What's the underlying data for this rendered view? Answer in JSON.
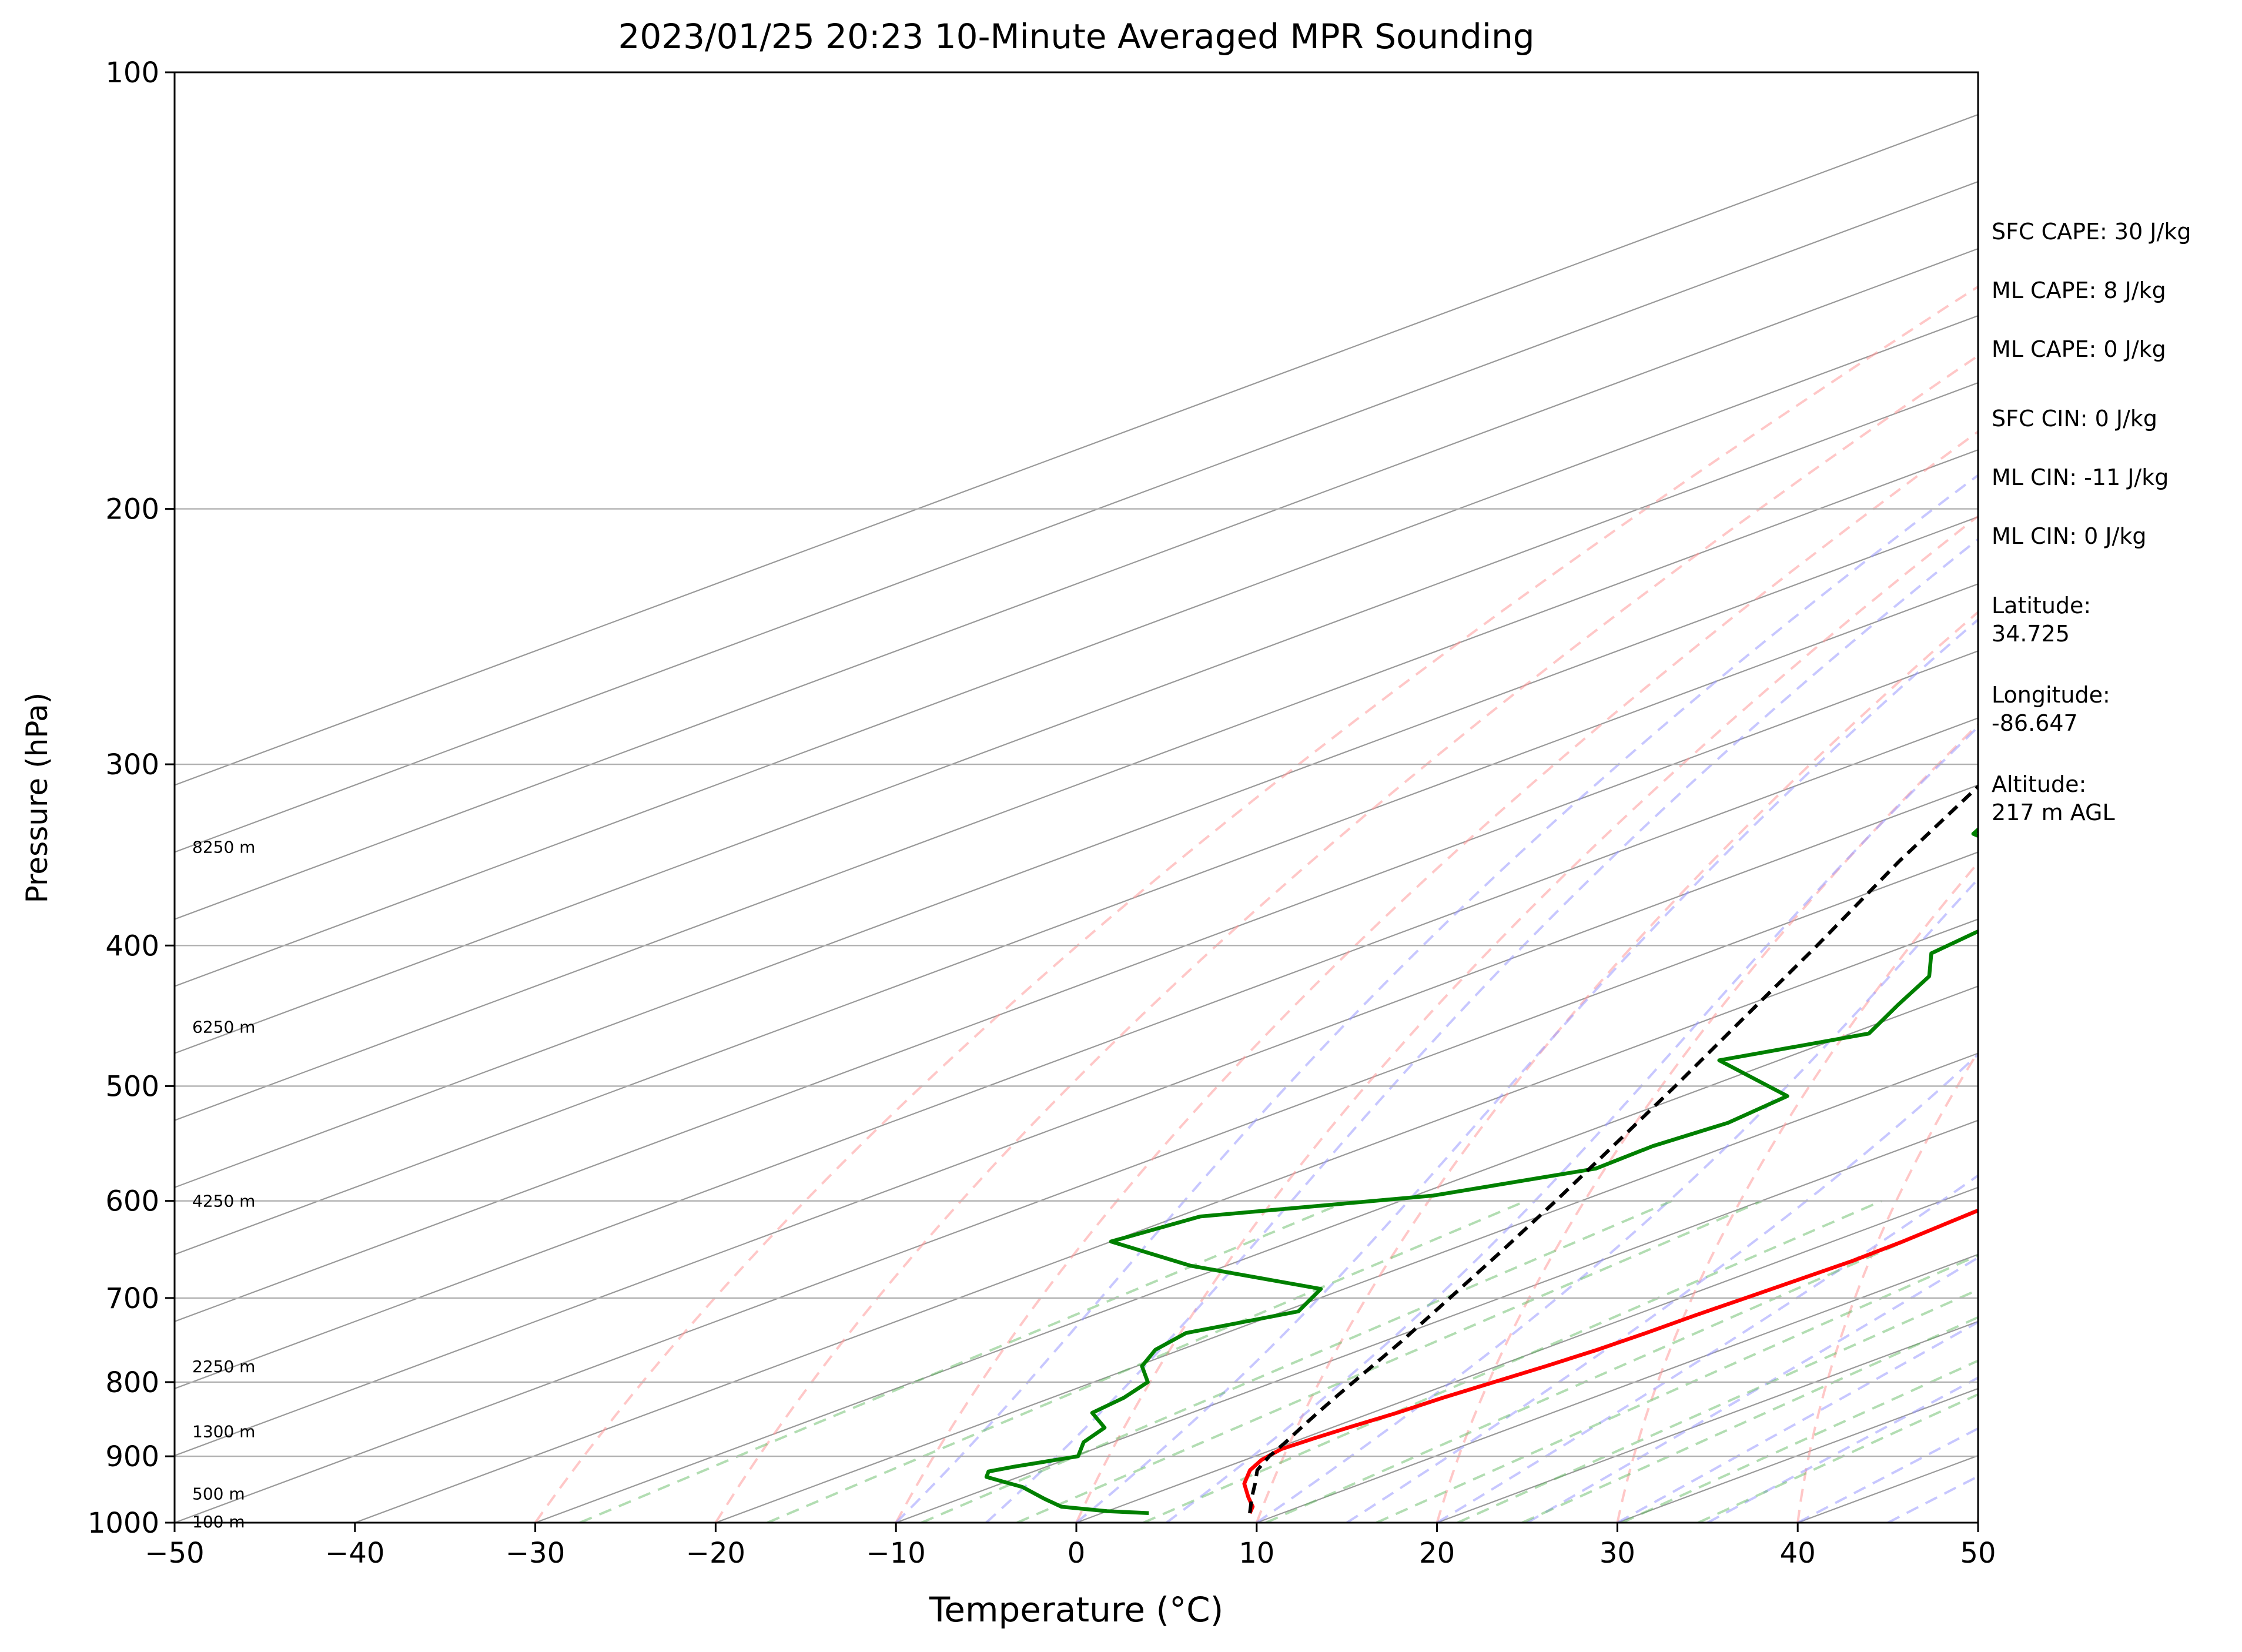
{
  "chart_data": {
    "type": "line",
    "title": "2023/01/25 20:23 10-Minute Averaged MPR Sounding",
    "xlabel": "Temperature (°C)",
    "ylabel": "Pressure (hPa)",
    "xlim": [
      -50,
      50
    ],
    "ylim": [
      1000,
      100
    ],
    "yscale": "log",
    "x_ticks": [
      -50,
      -40,
      -30,
      -20,
      -10,
      0,
      10,
      20,
      30,
      40,
      50
    ],
    "x_tick_labels": [
      "−50",
      "−40",
      "−30",
      "−20",
      "−10",
      "0",
      "10",
      "20",
      "30",
      "40",
      "50"
    ],
    "y_ticks": [
      1000,
      900,
      800,
      700,
      600,
      500,
      400,
      300,
      200,
      100
    ],
    "y_tick_labels": [
      "1000",
      "900",
      "800",
      "700",
      "600",
      "500",
      "400",
      "300",
      "200",
      "100"
    ],
    "grid": true,
    "skew_t": true,
    "height_labels": [
      {
        "p": 998,
        "text": "100 m"
      },
      {
        "p": 955,
        "text": "500 m"
      },
      {
        "p": 865,
        "text": "1300 m"
      },
      {
        "p": 780,
        "text": "2250 m"
      },
      {
        "p": 600,
        "text": "4250 m"
      },
      {
        "p": 455,
        "text": "6250 m"
      },
      {
        "p": 342,
        "text": "8250 m"
      }
    ],
    "series": [
      {
        "role": "temperature",
        "color": "#ff0000",
        "points": [
          {
            "p": 985,
            "t": 8.2
          },
          {
            "p": 975,
            "t": 7.4
          },
          {
            "p": 960,
            "t": 5.7
          },
          {
            "p": 940,
            "t": 3.5
          },
          {
            "p": 920,
            "t": 1.8
          },
          {
            "p": 905,
            "t": 0.9
          },
          {
            "p": 890,
            "t": 0.4
          },
          {
            "p": 875,
            "t": 0.6
          },
          {
            "p": 860,
            "t": 0.9
          },
          {
            "p": 840,
            "t": 1.4
          },
          {
            "p": 820,
            "t": 1.7
          },
          {
            "p": 800,
            "t": 2.2
          },
          {
            "p": 780,
            "t": 2.7
          },
          {
            "p": 760,
            "t": 3.1
          },
          {
            "p": 740,
            "t": 3.3
          },
          {
            "p": 720,
            "t": 3.4
          },
          {
            "p": 700,
            "t": 3.6
          },
          {
            "p": 680,
            "t": 3.8
          },
          {
            "p": 660,
            "t": 4.0
          },
          {
            "p": 640,
            "t": 3.9
          },
          {
            "p": 620,
            "t": 3.6
          },
          {
            "p": 600,
            "t": 3.3
          },
          {
            "p": 580,
            "t": 3.1
          },
          {
            "p": 560,
            "t": 2.8
          },
          {
            "p": 540,
            "t": 2.1
          },
          {
            "p": 520,
            "t": 1.2
          },
          {
            "p": 500,
            "t": 0.1
          },
          {
            "p": 480,
            "t": -0.9
          },
          {
            "p": 460,
            "t": -2.3
          },
          {
            "p": 440,
            "t": -4.2
          },
          {
            "p": 420,
            "t": -6.6
          },
          {
            "p": 400,
            "t": -9.1
          },
          {
            "p": 380,
            "t": -11.8
          },
          {
            "p": 360,
            "t": -14.8
          },
          {
            "p": 340,
            "t": -18.0
          },
          {
            "p": 320,
            "t": -21.8
          },
          {
            "p": 300,
            "t": -25.8
          },
          {
            "p": 285,
            "t": -28.4
          },
          {
            "p": 270,
            "t": -31.0
          },
          {
            "p": 258,
            "t": -33.2
          }
        ]
      },
      {
        "role": "dewpoint",
        "color": "#008000",
        "points": [
          {
            "p": 985,
            "t": 2.6
          },
          {
            "p": 982,
            "t": 0.0
          },
          {
            "p": 975,
            "t": -3.2
          },
          {
            "p": 963,
            "t": -5.3
          },
          {
            "p": 945,
            "t": -8.3
          },
          {
            "p": 930,
            "t": -11.8
          },
          {
            "p": 922,
            "t": -12.5
          },
          {
            "p": 915,
            "t": -11.8
          },
          {
            "p": 900,
            "t": -9.8
          },
          {
            "p": 880,
            "t": -11.6
          },
          {
            "p": 860,
            "t": -12.6
          },
          {
            "p": 840,
            "t": -15.5
          },
          {
            "p": 820,
            "t": -16.0
          },
          {
            "p": 800,
            "t": -17.0
          },
          {
            "p": 780,
            "t": -19.7
          },
          {
            "p": 760,
            "t": -21.4
          },
          {
            "p": 740,
            "t": -22.2
          },
          {
            "p": 715,
            "t": -19.2
          },
          {
            "p": 690,
            "t": -21.3
          },
          {
            "p": 665,
            "t": -32.0
          },
          {
            "p": 640,
            "t": -40.0
          },
          {
            "p": 615,
            "t": -38.8
          },
          {
            "p": 595,
            "t": -29.0
          },
          {
            "p": 570,
            "t": -24.0
          },
          {
            "p": 550,
            "t": -24.2
          },
          {
            "p": 530,
            "t": -23.5
          },
          {
            "p": 508,
            "t": -24.2
          },
          {
            "p": 480,
            "t": -33.3
          },
          {
            "p": 460,
            "t": -29.0
          },
          {
            "p": 440,
            "t": -31.6
          },
          {
            "p": 420,
            "t": -34.2
          },
          {
            "p": 405,
            "t": -37.5
          },
          {
            "p": 385,
            "t": -38.5
          },
          {
            "p": 370,
            "t": -40.1
          },
          {
            "p": 350,
            "t": -45.4
          },
          {
            "p": 335,
            "t": -53.0
          },
          {
            "p": 320,
            "t": -55.5
          },
          {
            "p": 310,
            "t": -58.5
          },
          {
            "p": 300,
            "t": -59.2
          },
          {
            "p": 295,
            "t": -60.0
          },
          {
            "p": 287,
            "t": -64.0
          },
          {
            "p": 278,
            "t": -68.0
          },
          {
            "p": 270,
            "t": -68.0
          },
          {
            "p": 258,
            "t": -66.0
          }
        ]
      },
      {
        "role": "parcel",
        "color": "#000000",
        "dashed": true,
        "points": [
          {
            "p": 985,
            "t": 8.2
          },
          {
            "p": 960,
            "t": 5.9
          },
          {
            "p": 940,
            "t": 4.1
          },
          {
            "p": 920,
            "t": 2.2
          },
          {
            "p": 900,
            "t": 0.8
          },
          {
            "p": 880,
            "t": -0.4
          },
          {
            "p": 860,
            "t": -1.7
          },
          {
            "p": 840,
            "t": -3.0
          },
          {
            "p": 820,
            "t": -4.3
          },
          {
            "p": 800,
            "t": -5.6
          },
          {
            "p": 750,
            "t": -9.0
          },
          {
            "p": 700,
            "t": -12.8
          },
          {
            "p": 650,
            "t": -16.9
          },
          {
            "p": 600,
            "t": -21.4
          },
          {
            "p": 550,
            "t": -26.4
          },
          {
            "p": 500,
            "t": -31.9
          },
          {
            "p": 450,
            "t": -38.1
          },
          {
            "p": 400,
            "t": -45.0
          },
          {
            "p": 350,
            "t": -53.0
          },
          {
            "p": 300,
            "t": -61.8
          },
          {
            "p": 260,
            "t": -68.9
          }
        ]
      }
    ]
  },
  "stats": {
    "sfc_cape": "SFC CAPE: 30 J/kg",
    "ml_cape_1": "ML CAPE: 8 J/kg",
    "ml_cape_2": "ML CAPE: 0 J/kg",
    "sfc_cin": "SFC CIN: 0 J/kg",
    "ml_cin_1": "ML CIN: -11 J/kg",
    "ml_cin_2": "ML CIN: 0 J/kg",
    "latitude_label": "Latitude:",
    "latitude_value": "34.725",
    "longitude_label": "Longitude:",
    "longitude_value": "-86.647",
    "altitude_label": "Altitude:",
    "altitude_value": "217 m AGL"
  },
  "colors": {
    "isotherm": "#999999",
    "dry_adiabat": "#ff9999",
    "moist_adiabat": "#9999ff",
    "mixing_ratio": "#66bb66"
  }
}
